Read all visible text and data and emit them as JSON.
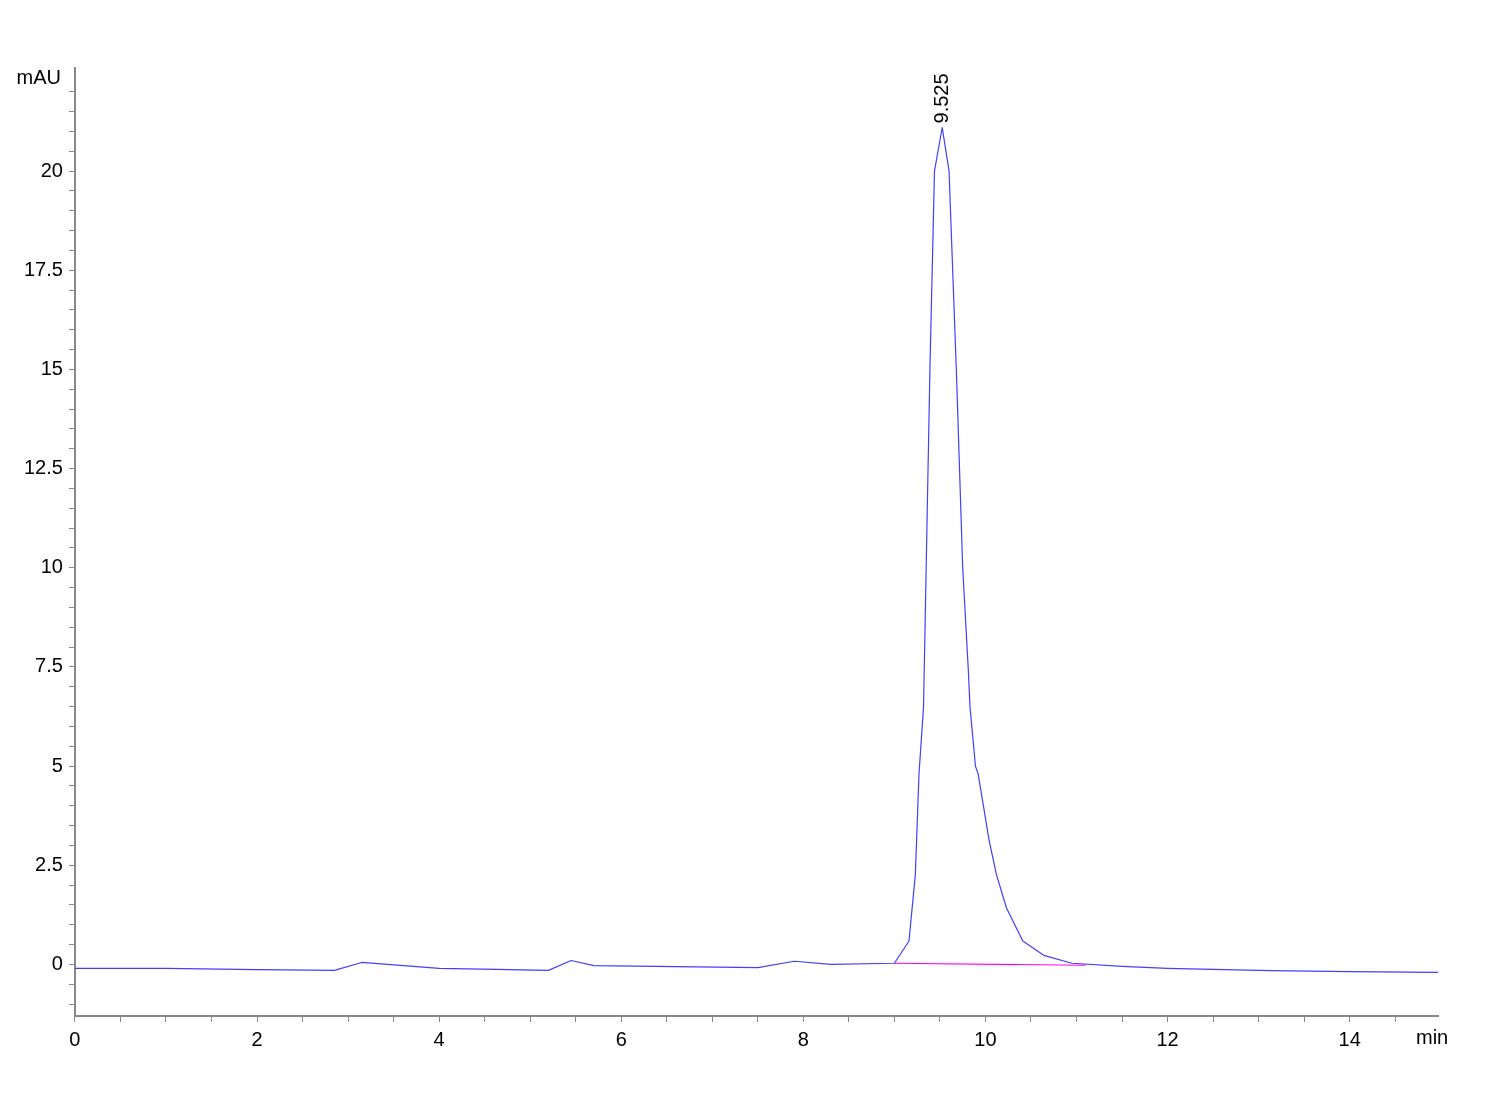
{
  "chart_data": {
    "type": "line",
    "xlabel": "min",
    "ylabel": "mAU",
    "xlim": [
      0,
      14.97
    ],
    "ylim": [
      -1.3,
      22.6
    ],
    "xticks": [
      0,
      {
        "value": 0.5,
        "label": null
      },
      {
        "value": 1,
        "label": null
      },
      {
        "value": 1.5,
        "label": null
      },
      2,
      {
        "value": 2.5,
        "label": null
      },
      {
        "value": 3,
        "label": null
      },
      {
        "value": 3.5,
        "label": null
      },
      4,
      {
        "value": 4.5,
        "label": null
      },
      {
        "value": 5,
        "label": null
      },
      {
        "value": 5.5,
        "label": null
      },
      6,
      {
        "value": 6.5,
        "label": null
      },
      {
        "value": 7,
        "label": null
      },
      {
        "value": 7.5,
        "label": null
      },
      8,
      {
        "value": 8.5,
        "label": null
      },
      {
        "value": 9,
        "label": null
      },
      {
        "value": 9.5,
        "label": null
      },
      10,
      {
        "value": 10.5,
        "label": null
      },
      {
        "value": 11,
        "label": null
      },
      {
        "value": 11.5,
        "label": null
      },
      12,
      {
        "value": 12.5,
        "label": null
      },
      {
        "value": 13,
        "label": null
      },
      {
        "value": 13.5,
        "label": null
      },
      14,
      {
        "value": 14.5,
        "label": null
      }
    ],
    "yticks": [
      {
        "value": -1,
        "label": null
      },
      {
        "value": -0.5,
        "label": null
      },
      0,
      {
        "value": 0.5,
        "label": null
      },
      {
        "value": 1,
        "label": null
      },
      {
        "value": 1.5,
        "label": null
      },
      {
        "value": 2,
        "label": null
      },
      2.5,
      {
        "value": 3,
        "label": null
      },
      {
        "value": 3.5,
        "label": null
      },
      {
        "value": 4,
        "label": null
      },
      {
        "value": 4.5,
        "label": null
      },
      5,
      {
        "value": 5.5,
        "label": null
      },
      {
        "value": 6,
        "label": null
      },
      {
        "value": 6.5,
        "label": null
      },
      {
        "value": 7,
        "label": null
      },
      7.5,
      {
        "value": 8,
        "label": null
      },
      {
        "value": 8.5,
        "label": null
      },
      {
        "value": 9,
        "label": null
      },
      {
        "value": 9.5,
        "label": null
      },
      10,
      {
        "value": 10.5,
        "label": null
      },
      {
        "value": 11,
        "label": null
      },
      {
        "value": 11.5,
        "label": null
      },
      {
        "value": 12,
        "label": null
      },
      12.5,
      {
        "value": 13,
        "label": null
      },
      {
        "value": 13.5,
        "label": null
      },
      {
        "value": 14,
        "label": null
      },
      {
        "value": 14.5,
        "label": null
      },
      15,
      {
        "value": 15.5,
        "label": null
      },
      {
        "value": 16,
        "label": null
      },
      {
        "value": 16.5,
        "label": null
      },
      {
        "value": 17,
        "label": null
      },
      17.5,
      {
        "value": 18,
        "label": null
      },
      {
        "value": 18.5,
        "label": null
      },
      {
        "value": 19,
        "label": null
      },
      {
        "value": 19.5,
        "label": null
      },
      20,
      {
        "value": 20.5,
        "label": null
      },
      {
        "value": 21,
        "label": null
      },
      {
        "value": 21.5,
        "label": null
      },
      {
        "value": 22,
        "label": null
      }
    ],
    "grid": false,
    "legend": false,
    "marker": "none",
    "line_style": "solid",
    "series": [
      {
        "color": "#4040ff",
        "x": [
          0,
          1,
          2,
          2.85,
          3.15,
          4,
          5.2,
          5.45,
          5.7,
          7.5,
          7.9,
          8.3,
          9,
          9.16,
          9.23,
          9.27,
          9.32,
          9.39,
          9.44,
          9.525,
          9.6,
          9.68,
          9.75,
          9.81,
          9.83,
          9.89,
          9.92,
          10.04,
          10.12,
          10.23,
          10.41,
          10.64,
          10.95,
          11.5,
          12,
          13,
          14,
          14.97
        ],
        "values": [
          -0.1,
          -0.1,
          -0.13,
          -0.15,
          0.05,
          -0.1,
          -0.15,
          0.1,
          -0.03,
          -0.08,
          0.08,
          0,
          0.03,
          0.59,
          2.27,
          4.8,
          6.5,
          15,
          20,
          21.1,
          20,
          15,
          10,
          7.5,
          6.5,
          5,
          4.8,
          3.13,
          2.27,
          1.43,
          0.59,
          0.23,
          0.03,
          -0.05,
          -0.1,
          -0.15,
          -0.18,
          -0.2
        ]
      },
      {
        "color": "#ff00ff",
        "x": [
          9,
          11.1
        ],
        "values": [
          0.03,
          -0.02
        ]
      }
    ],
    "annotations": [
      {
        "text": "9.525",
        "x": 9.525,
        "y": 21.1
      }
    ]
  }
}
